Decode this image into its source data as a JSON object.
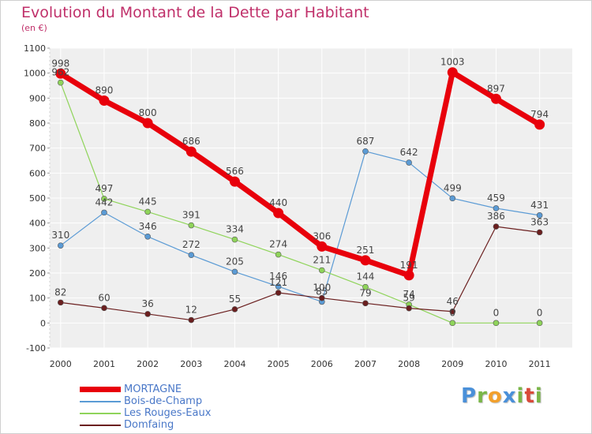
{
  "title": "Evolution du Montant de la Dette par Habitant",
  "unit_label": "(en €)",
  "logo": {
    "text": "Proxiti",
    "letters": [
      "P",
      "r",
      "o",
      "x",
      "i",
      "t",
      "i"
    ],
    "colors": [
      "#4a90d9",
      "#7ab648",
      "#f2a02c",
      "#4a90d9",
      "#7ab648",
      "#d94a3a",
      "#7ab648"
    ]
  },
  "chart_data": {
    "type": "line",
    "title": "Evolution du Montant de la Dette par Habitant",
    "ylabel": "(en €)",
    "xlabel": "",
    "x": [
      "2000",
      "2001",
      "2002",
      "2003",
      "2004",
      "2005",
      "2006",
      "2007",
      "2008",
      "2009",
      "2010",
      "2011"
    ],
    "ylim": [
      -100,
      1100
    ],
    "yticks": [
      "-100",
      "0",
      "100",
      "200",
      "300",
      "400",
      "500",
      "600",
      "700",
      "800",
      "900",
      "1000",
      "1100"
    ],
    "grid": true,
    "legend_position": "bottom-left",
    "series": [
      {
        "name": "MORTAGNE",
        "color": "#e8000b",
        "emphasis": true,
        "values": [
          998,
          890,
          800,
          686,
          566,
          440,
          306,
          251,
          191,
          1003,
          897,
          794
        ],
        "labels": [
          "998",
          "890",
          "800",
          "686",
          "566",
          "440",
          "306",
          "251",
          "191",
          "1003",
          "897",
          "794"
        ]
      },
      {
        "name": "Bois-de-Champ",
        "color": "#5b9bd5",
        "emphasis": false,
        "values": [
          310,
          442,
          346,
          272,
          205,
          146,
          85,
          687,
          642,
          499,
          459,
          431
        ],
        "labels": [
          "310",
          "442",
          "346",
          "272",
          "205",
          "146",
          "85",
          "687",
          "642",
          "499",
          "459",
          "431"
        ]
      },
      {
        "name": "Les Rouges-Eaux",
        "color": "#8fd45a",
        "emphasis": false,
        "values": [
          962,
          497,
          445,
          391,
          334,
          274,
          211,
          144,
          74,
          0,
          0,
          0
        ],
        "labels": [
          "962",
          "497",
          "445",
          "391",
          "334",
          "274",
          "211",
          "144",
          "74",
          "0",
          "0",
          "0"
        ]
      },
      {
        "name": "Domfaing",
        "color": "#6b1f1f",
        "emphasis": false,
        "values": [
          82,
          60,
          36,
          12,
          55,
          121,
          100,
          79,
          59,
          46,
          386,
          363
        ],
        "labels": [
          "82",
          "60",
          "36",
          "12",
          "55",
          "121",
          "100",
          "79",
          "59",
          "46",
          "386",
          "363"
        ]
      }
    ]
  }
}
